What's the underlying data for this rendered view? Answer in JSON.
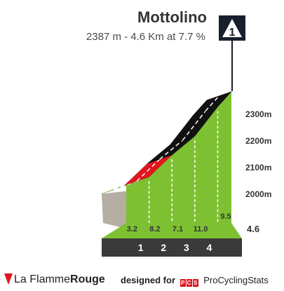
{
  "header": {
    "climb_name": "Mottolino",
    "stats": "2387 m - 4.6 Km at 7.7 %",
    "category_badge": "1"
  },
  "footer": {
    "brand_prefix": "La Flamme",
    "brand_suffix": "Rouge",
    "designed_for": "designed for",
    "partner_logo": "PCS",
    "partner_name": "ProCyclingStats"
  },
  "colors": {
    "easy": "#7dc132",
    "medium": "#e0161f",
    "hard": "#111111",
    "base": "#3a3a3a",
    "rock": "#b5aea2"
  },
  "chart_data": {
    "type": "area",
    "title": "Mottolino",
    "subtitle": "2387 m - 4.6 Km at 7.7 %",
    "x_unit": "km",
    "y_unit": "m",
    "xlim": [
      0,
      4.6
    ],
    "ylim": [
      1950,
      2387
    ],
    "y_ticks": [
      2000,
      2100,
      2200,
      2300
    ],
    "y_tick_labels": [
      "2000m",
      "2100m",
      "2200m",
      "2300m"
    ],
    "km_markers": [
      "1",
      "2",
      "3",
      "4"
    ],
    "total_distance_label": "4.6",
    "segments": [
      {
        "x0": 0.0,
        "x1": 1.0,
        "y0": 2033,
        "y1": 2065,
        "gradient": "3.2",
        "level": "easy"
      },
      {
        "x0": 1.0,
        "x1": 2.0,
        "y0": 2065,
        "y1": 2147,
        "gradient": "8.2",
        "level": "medium"
      },
      {
        "x0": 2.0,
        "x1": 3.0,
        "y0": 2147,
        "y1": 2218,
        "gradient": "7.1",
        "level": "hard"
      },
      {
        "x0": 3.0,
        "x1": 4.0,
        "y0": 2218,
        "y1": 2328,
        "gradient": "11.0",
        "level": "hard"
      },
      {
        "x0": 4.0,
        "x1": 4.6,
        "y0": 2328,
        "y1": 2385,
        "gradient": "9.5",
        "level": "hard"
      }
    ]
  }
}
